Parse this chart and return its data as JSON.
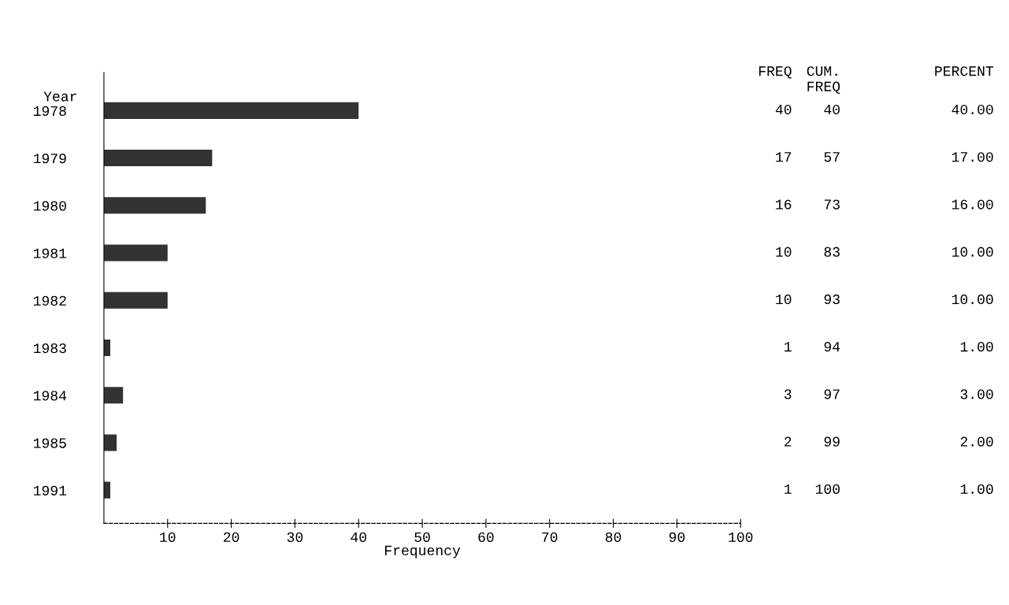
{
  "chart_data": {
    "type": "bar",
    "orientation": "horizontal",
    "xlabel": "Frequency",
    "ylabel": "Year",
    "categories": [
      "1978",
      "1979",
      "1980",
      "1981",
      "1982",
      "1983",
      "1984",
      "1985",
      "1991"
    ],
    "series": [
      {
        "color": "#333333",
        "values": [
          40,
          17,
          16,
          10,
          10,
          1,
          3,
          2,
          1
        ]
      }
    ],
    "data_labels": true,
    "xlim": [
      0,
      100
    ],
    "xticks": [
      10,
      20,
      30,
      40,
      50,
      60,
      70,
      80,
      90,
      100
    ],
    "grid": false,
    "legend": false,
    "annotations": [
      "FREQ",
      "CUM.\nFREQ",
      "PERCENT",
      "40",
      "40.00",
      "57",
      "17.00",
      "73",
      "16.00",
      "83",
      "10.00",
      "93",
      "10.00",
      "94",
      "1.00",
      "97",
      "3.00",
      "99",
      "2.00",
      "100",
      "1.00"
    ]
  }
}
